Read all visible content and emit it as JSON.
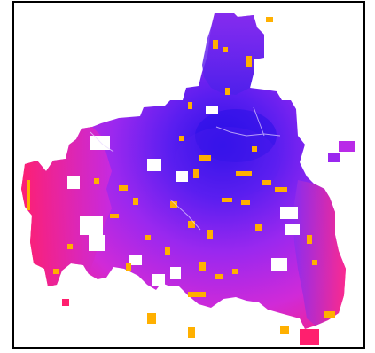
{
  "map": {
    "type": "choropleth-raster",
    "color_scale": {
      "low": "#ff1f6e",
      "mid": "#b02af0",
      "high": "#2a10e8",
      "highlight": "#ffb000"
    },
    "background": "#ffffff",
    "frame_border": "#000000"
  }
}
